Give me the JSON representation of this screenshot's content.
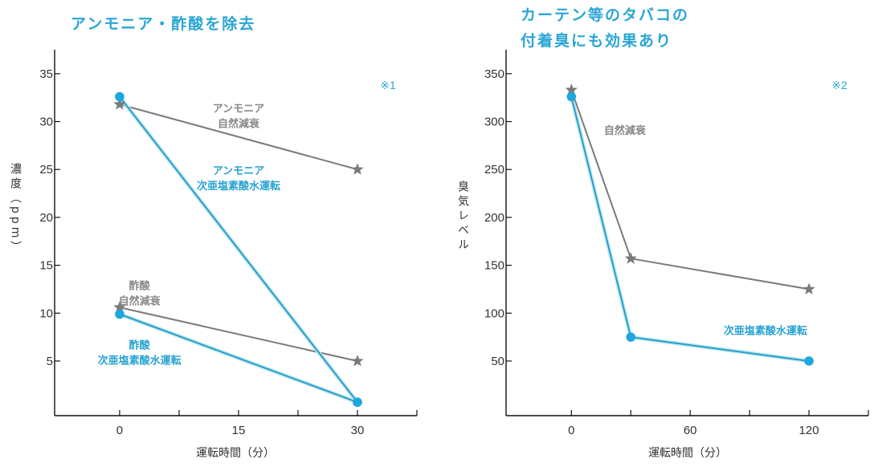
{
  "chart_data": [
    {
      "type": "line",
      "title": "アンモニア・酢酸を除去",
      "note": "※1",
      "xlabel": "運転時間（分）",
      "ylabel": "濃度（ppm）",
      "xlim": [
        -8.2,
        37.5
      ],
      "ylim": [
        -0.7,
        37.5
      ],
      "xticks": [
        0,
        7.5,
        15,
        22.5,
        30,
        37.5
      ],
      "xtick_labels": [
        "0",
        "",
        "15",
        "",
        "30",
        ""
      ],
      "yticks": [
        5,
        10,
        15,
        20,
        25,
        30,
        35
      ],
      "ytick_labels": [
        "5",
        "10",
        "15",
        "20",
        "25",
        "30",
        "35"
      ],
      "grid": false,
      "series": [
        {
          "name": "アンモニア 自然減衰",
          "marker": "star",
          "color": "#7a7a7a",
          "x": [
            0,
            30
          ],
          "y": [
            31.8,
            25
          ]
        },
        {
          "name": "アンモニア 次亜塩素酸水運転",
          "marker": "circle",
          "color": "#1ea7de",
          "x": [
            0,
            30
          ],
          "y": [
            32.6,
            0.7
          ]
        },
        {
          "name": "酢酸 自然減衰",
          "marker": "star",
          "color": "#7a7a7a",
          "x": [
            0,
            30
          ],
          "y": [
            10.6,
            5
          ]
        },
        {
          "name": "酢酸 次亜塩素酸水運転",
          "marker": "circle",
          "color": "#1ea7de",
          "x": [
            0,
            30
          ],
          "y": [
            9.9,
            0.7
          ]
        }
      ],
      "annotations": [
        {
          "lines": [
            "アンモニア",
            "自然減衰"
          ],
          "style": "gray",
          "x": 15,
          "y": 31
        },
        {
          "lines": [
            "アンモニア",
            "次亜塩素酸水運転"
          ],
          "style": "blue",
          "x": 15,
          "y": 24.5
        },
        {
          "lines": [
            "酢酸",
            "自然減衰"
          ],
          "style": "gray",
          "x": 2.5,
          "y": 12.5
        },
        {
          "lines": [
            "酢酸",
            "次亜塩素酸水運転"
          ],
          "style": "blue",
          "x": 2.5,
          "y": 6.3
        }
      ]
    },
    {
      "type": "line",
      "title": "カーテン等のタバコの 付着臭にも効果あり",
      "title_lines": [
        "カーテン等のタバコの",
        "付着臭にも効果あり"
      ],
      "note": "※2",
      "xlabel": "運転時間（分）",
      "ylabel": "臭気レベル",
      "xlim": [
        -33,
        150
      ],
      "ylim": [
        -7,
        375
      ],
      "xticks": [
        0,
        30,
        60,
        90,
        120,
        150
      ],
      "xtick_labels": [
        "0",
        "",
        "60",
        "",
        "120",
        ""
      ],
      "yticks": [
        50,
        100,
        150,
        200,
        250,
        300,
        350
      ],
      "ytick_labels": [
        "50",
        "100",
        "150",
        "200",
        "250",
        "300",
        "350"
      ],
      "grid": false,
      "series": [
        {
          "name": "自然減衰",
          "marker": "star",
          "color": "#7a7a7a",
          "x": [
            0,
            30,
            120
          ],
          "y": [
            333,
            157,
            125
          ]
        },
        {
          "name": "次亜塩素酸水運転",
          "marker": "circle",
          "color": "#1ea7de",
          "x": [
            0,
            30,
            120
          ],
          "y": [
            326,
            75,
            50
          ]
        }
      ],
      "annotations": [
        {
          "lines": [
            "自然減衰"
          ],
          "style": "gray",
          "x": 27,
          "y": 287
        },
        {
          "lines": [
            "次亜塩素酸水運転"
          ],
          "style": "blue",
          "x": 98,
          "y": 78
        }
      ]
    }
  ]
}
